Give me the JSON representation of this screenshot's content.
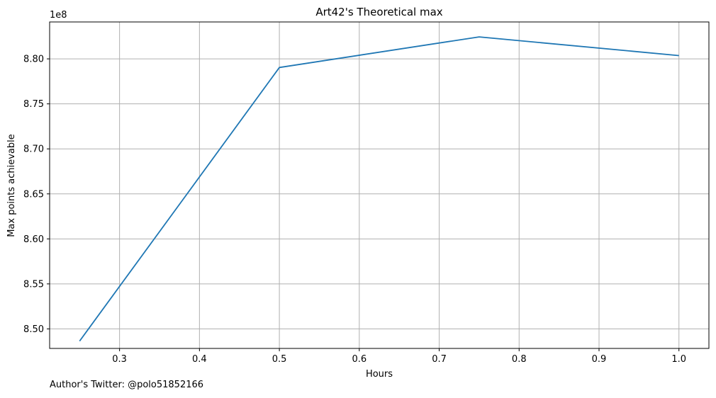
{
  "chart_data": {
    "type": "line",
    "title": "Art42's Theoretical max",
    "xlabel": "Hours",
    "ylabel": "Max points achievable",
    "y_offset_label": "1e8",
    "x_ticks": [
      0.3,
      0.4,
      0.5,
      0.6,
      0.7,
      0.8,
      0.9,
      1.0
    ],
    "x_tick_labels": [
      "0.3",
      "0.4",
      "0.5",
      "0.6",
      "0.7",
      "0.8",
      "0.9",
      "1.0"
    ],
    "y_ticks": [
      8.5,
      8.55,
      8.6,
      8.65,
      8.7,
      8.75,
      8.8
    ],
    "y_tick_labels": [
      "8.50",
      "8.55",
      "8.60",
      "8.65",
      "8.70",
      "8.75",
      "8.80"
    ],
    "xlim": [
      0.2125,
      1.0375
    ],
    "ylim": [
      8.4783,
      8.841
    ],
    "grid": true,
    "series": [
      {
        "color": "#1f77b4",
        "x": [
          0.25,
          0.5,
          0.75,
          1.0
        ],
        "y": [
          8.4865,
          8.7904,
          8.8244,
          8.8036
        ]
      }
    ]
  },
  "footer": {
    "note": "Author's Twitter: @polo51852166"
  }
}
